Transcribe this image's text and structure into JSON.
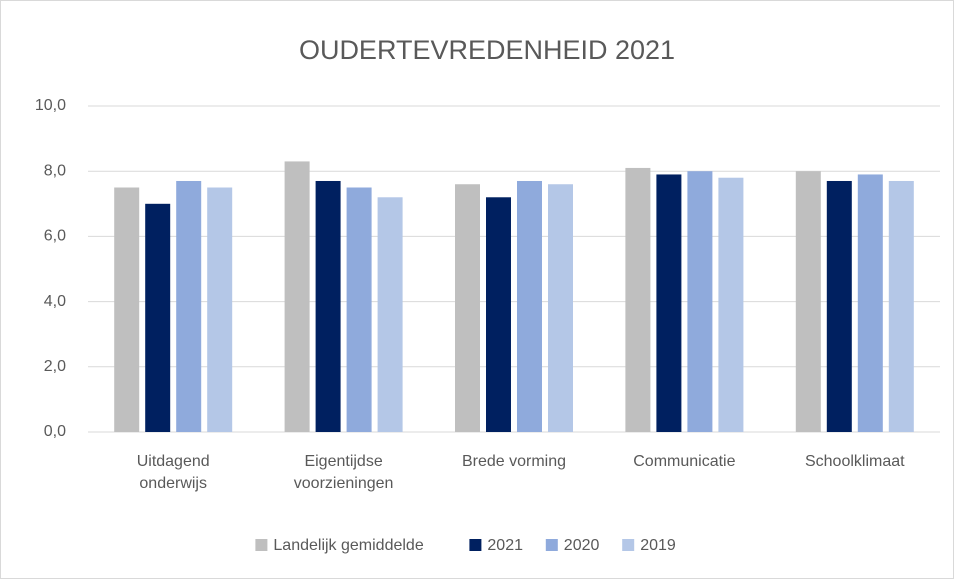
{
  "chart_data": {
    "type": "bar",
    "title": "OUDERTEVREDENHEID 2021",
    "categories": [
      "Uitdagend\nonderwijs",
      "Eigentijdse\nvoorzieningen",
      "Brede vorming",
      "Communicatie",
      "Schoolklimaat"
    ],
    "series": [
      {
        "name": "Landelijk gemiddelde",
        "color": "#bfbfbf",
        "values": [
          7.5,
          8.3,
          7.6,
          8.1,
          8.0
        ]
      },
      {
        "name": "2021",
        "color": "#002060",
        "values": [
          7.0,
          7.7,
          7.2,
          7.9,
          7.7
        ]
      },
      {
        "name": "2020",
        "color": "#8faadc",
        "values": [
          7.7,
          7.5,
          7.7,
          8.0,
          7.9
        ]
      },
      {
        "name": "2019",
        "color": "#b4c7e7",
        "values": [
          7.5,
          7.2,
          7.6,
          7.8,
          7.7
        ]
      }
    ],
    "ylim": [
      0,
      10
    ],
    "yticks": [
      {
        "value": 0,
        "label": "0,0"
      },
      {
        "value": 2,
        "label": "2,0"
      },
      {
        "value": 4,
        "label": "4,0"
      },
      {
        "value": 6,
        "label": "6,0"
      },
      {
        "value": 8,
        "label": "8,0"
      },
      {
        "value": 10,
        "label": "10,0"
      }
    ],
    "grid": true,
    "legend": "bottom"
  }
}
